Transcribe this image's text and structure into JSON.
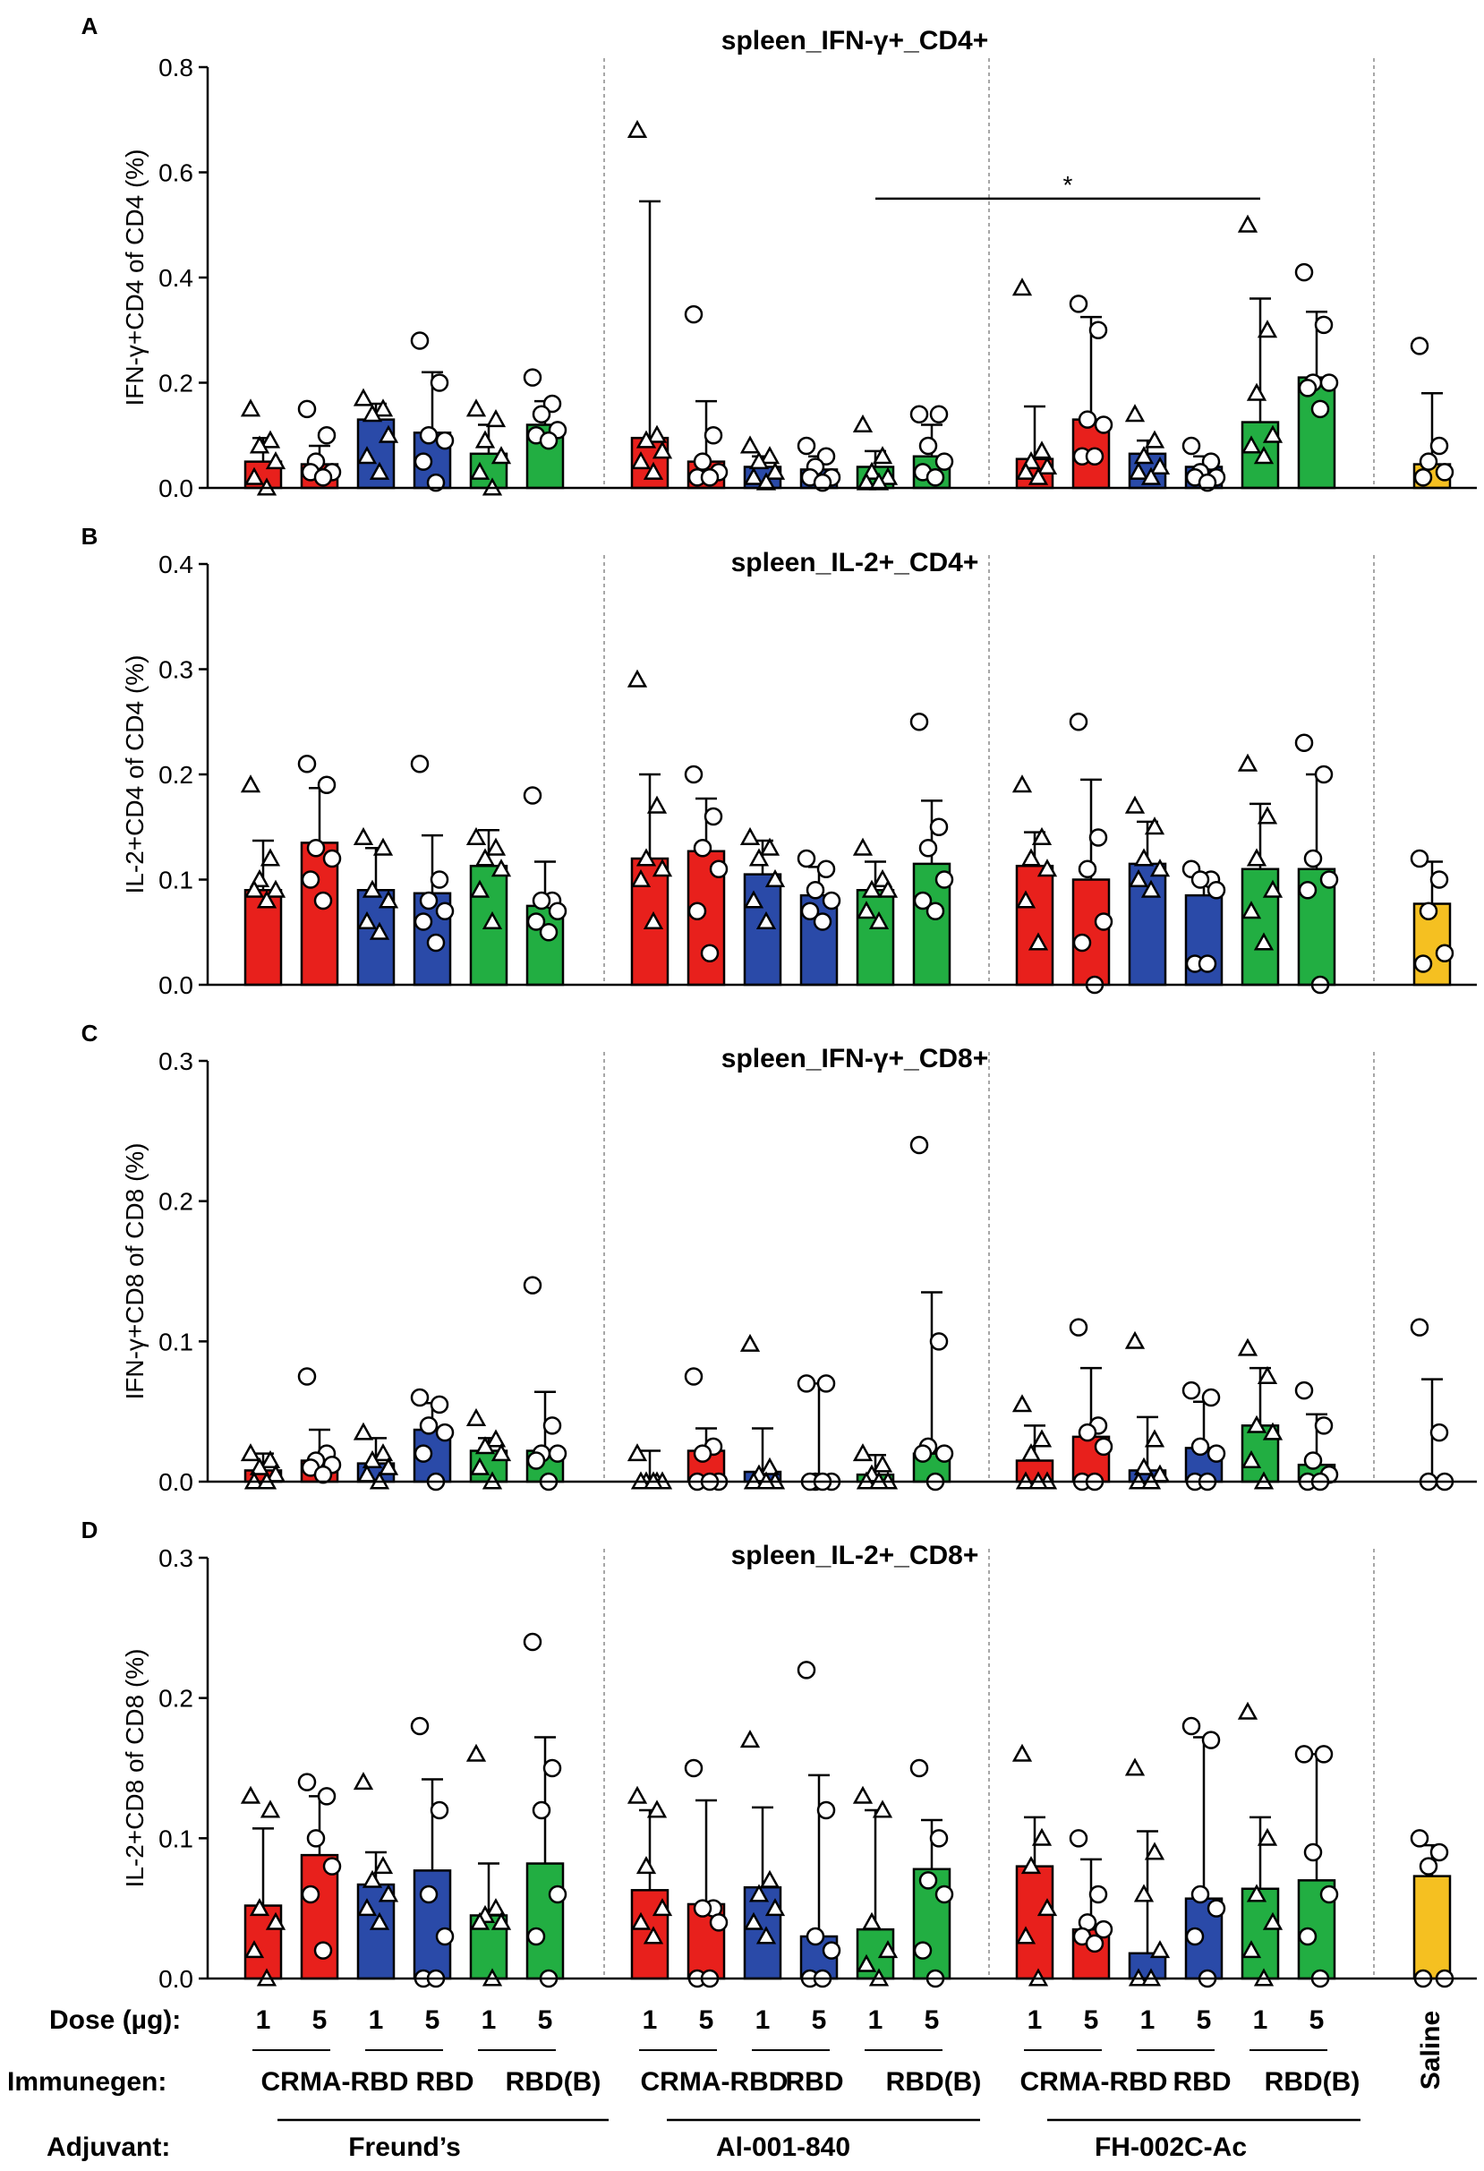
{
  "groups": [
    {
      "label": "Freund's",
      "bars": [
        {
          "immunogen": "CRMA-RBD",
          "dose": "1",
          "color": "#e8201c",
          "marker": "triangle"
        },
        {
          "immunogen": "CRMA-RBD",
          "dose": "5",
          "color": "#e8201c",
          "marker": "circle"
        },
        {
          "immunogen": "RBD",
          "dose": "1",
          "color": "#2a4aa8",
          "marker": "triangle"
        },
        {
          "immunogen": "RBD",
          "dose": "5",
          "color": "#2a4aa8",
          "marker": "circle"
        },
        {
          "immunogen": "RBD(B)",
          "dose": "1",
          "color": "#22ae42",
          "marker": "triangle"
        },
        {
          "immunogen": "RBD(B)",
          "dose": "5",
          "color": "#22ae42",
          "marker": "circle"
        }
      ]
    },
    {
      "label": "Al-001-840",
      "bars": [
        {
          "immunogen": "CRMA-RBD",
          "dose": "1",
          "color": "#e8201c",
          "marker": "triangle"
        },
        {
          "immunogen": "CRMA-RBD",
          "dose": "5",
          "color": "#e8201c",
          "marker": "circle"
        },
        {
          "immunogen": "RBD",
          "dose": "1",
          "color": "#2a4aa8",
          "marker": "triangle"
        },
        {
          "immunogen": "RBD",
          "dose": "5",
          "color": "#2a4aa8",
          "marker": "circle"
        },
        {
          "immunogen": "RBD(B)",
          "dose": "1",
          "color": "#22ae42",
          "marker": "triangle"
        },
        {
          "immunogen": "RBD(B)",
          "dose": "5",
          "color": "#22ae42",
          "marker": "circle"
        }
      ]
    },
    {
      "label": "FH-002C-Ac",
      "bars": [
        {
          "immunogen": "CRMA-RBD",
          "dose": "1",
          "color": "#e8201c",
          "marker": "triangle"
        },
        {
          "immunogen": "CRMA-RBD",
          "dose": "5",
          "color": "#e8201c",
          "marker": "circle"
        },
        {
          "immunogen": "RBD",
          "dose": "1",
          "color": "#2a4aa8",
          "marker": "triangle"
        },
        {
          "immunogen": "RBD",
          "dose": "5",
          "color": "#2a4aa8",
          "marker": "circle"
        },
        {
          "immunogen": "RBD(B)",
          "dose": "1",
          "color": "#22ae42",
          "marker": "triangle"
        },
        {
          "immunogen": "RBD(B)",
          "dose": "5",
          "color": "#22ae42",
          "marker": "circle"
        }
      ]
    },
    {
      "label": "Saline",
      "bars": [
        {
          "immunogen": "",
          "dose": "",
          "color": "#f5c021",
          "marker": "circle"
        }
      ]
    }
  ],
  "footer": {
    "dose_label": "Dose (µg):",
    "immunogen_label": "Immunegen:",
    "adjuvant_label": "Adjuvant:",
    "immunogen_names": [
      "CRMA-RBD",
      "RBD",
      "RBD(B)"
    ],
    "adjuvant_names": [
      "Freund’s",
      "Al-001-840",
      "FH-002C-Ac"
    ],
    "saline_label": "Saline"
  },
  "chart_data": [
    {
      "panel": "A",
      "type": "bar",
      "title": "spleen_IFN-γ+_CD4+",
      "ylabel": "IFN-γ+CD4 of CD4 (%)",
      "ylim": [
        0,
        0.8
      ],
      "yticks": [
        "0.0",
        "0.2",
        "0.4",
        "0.6",
        "0.8"
      ],
      "means": [
        0.05,
        0.045,
        0.13,
        0.105,
        0.065,
        0.12,
        0.095,
        0.05,
        0.04,
        0.035,
        0.04,
        0.06,
        0.055,
        0.13,
        0.065,
        0.04,
        0.125,
        0.21,
        0.045
      ],
      "err_hi": [
        0.095,
        0.08,
        0.16,
        0.22,
        0.12,
        0.165,
        0.545,
        0.165,
        0.06,
        0.06,
        0.07,
        0.12,
        0.155,
        0.325,
        0.09,
        0.06,
        0.36,
        0.335,
        0.18
      ],
      "points": [
        [
          0.15,
          0.09,
          0.08,
          0.05,
          0.02,
          0.0
        ],
        [
          0.15,
          0.1,
          0.05,
          0.03,
          0.03,
          0.02
        ],
        [
          0.17,
          0.15,
          0.14,
          0.1,
          0.06,
          0.03
        ],
        [
          0.28,
          0.2,
          0.1,
          0.09,
          0.05,
          0.01
        ],
        [
          0.15,
          0.13,
          0.09,
          0.06,
          0.03,
          0.0
        ],
        [
          0.21,
          0.16,
          0.14,
          0.11,
          0.1,
          0.09
        ],
        [
          0.68,
          0.1,
          0.09,
          0.07,
          0.05,
          0.03
        ],
        [
          0.33,
          0.1,
          0.05,
          0.03,
          0.02,
          0.02
        ],
        [
          0.08,
          0.06,
          0.05,
          0.03,
          0.02,
          0.01
        ],
        [
          0.08,
          0.06,
          0.04,
          0.02,
          0.02,
          0.01
        ],
        [
          0.12,
          0.06,
          0.03,
          0.02,
          0.01,
          0.01
        ],
        [
          0.14,
          0.14,
          0.08,
          0.05,
          0.03,
          0.02
        ],
        [
          0.38,
          0.07,
          0.05,
          0.04,
          0.03,
          0.02
        ],
        [
          0.35,
          0.3,
          0.13,
          0.12,
          0.06,
          0.06
        ],
        [
          0.14,
          0.09,
          0.06,
          0.04,
          0.03,
          0.02
        ],
        [
          0.08,
          0.05,
          0.03,
          0.02,
          0.02,
          0.01
        ],
        [
          0.5,
          0.3,
          0.18,
          0.1,
          0.08,
          0.06
        ],
        [
          0.41,
          0.31,
          0.2,
          0.2,
          0.19,
          0.15
        ],
        [
          0.27,
          0.08,
          0.05,
          0.03,
          0.02
        ]
      ],
      "annotations": [
        {
          "text": "*",
          "from_bar": 10,
          "to_bar": 16,
          "y": 0.55
        }
      ]
    },
    {
      "panel": "B",
      "type": "bar",
      "title": "spleen_IL-2+_CD4+",
      "ylabel": "IL-2+CD4 of CD4 (%)",
      "ylim": [
        0,
        0.4
      ],
      "yticks": [
        "0.0",
        "0.1",
        "0.2",
        "0.3",
        "0.4"
      ],
      "means": [
        0.09,
        0.135,
        0.09,
        0.087,
        0.113,
        0.075,
        0.12,
        0.127,
        0.105,
        0.085,
        0.09,
        0.115,
        0.113,
        0.1,
        0.115,
        0.085,
        0.11,
        0.11,
        0.077
      ],
      "err_hi": [
        0.137,
        0.187,
        0.13,
        0.142,
        0.147,
        0.117,
        0.2,
        0.177,
        0.137,
        0.112,
        0.117,
        0.175,
        0.145,
        0.195,
        0.155,
        0.105,
        0.172,
        0.2,
        0.117
      ],
      "points": [
        [
          0.19,
          0.12,
          0.1,
          0.09,
          0.09,
          0.08
        ],
        [
          0.21,
          0.19,
          0.13,
          0.12,
          0.1,
          0.08
        ],
        [
          0.14,
          0.13,
          0.09,
          0.08,
          0.06,
          0.05
        ],
        [
          0.21,
          0.1,
          0.08,
          0.07,
          0.06,
          0.04
        ],
        [
          0.14,
          0.13,
          0.12,
          0.11,
          0.09,
          0.06
        ],
        [
          0.18,
          0.08,
          0.08,
          0.07,
          0.06,
          0.05
        ],
        [
          0.29,
          0.17,
          0.12,
          0.11,
          0.1,
          0.06
        ],
        [
          0.2,
          0.16,
          0.13,
          0.11,
          0.07,
          0.03
        ],
        [
          0.14,
          0.13,
          0.12,
          0.1,
          0.08,
          0.06
        ],
        [
          0.12,
          0.11,
          0.09,
          0.08,
          0.07,
          0.06
        ],
        [
          0.13,
          0.1,
          0.09,
          0.09,
          0.07,
          0.06
        ],
        [
          0.25,
          0.15,
          0.13,
          0.1,
          0.08,
          0.07
        ],
        [
          0.19,
          0.14,
          0.12,
          0.11,
          0.08,
          0.04
        ],
        [
          0.25,
          0.14,
          0.11,
          0.06,
          0.04,
          0.0
        ],
        [
          0.17,
          0.15,
          0.12,
          0.11,
          0.1,
          0.09
        ],
        [
          0.11,
          0.1,
          0.1,
          0.09,
          0.02,
          0.02
        ],
        [
          0.21,
          0.16,
          0.12,
          0.09,
          0.07,
          0.04
        ],
        [
          0.23,
          0.2,
          0.12,
          0.1,
          0.09,
          0.0
        ],
        [
          0.12,
          0.1,
          0.07,
          0.03,
          0.02
        ]
      ],
      "annotations": []
    },
    {
      "panel": "C",
      "type": "bar",
      "title": "spleen_IFN-γ+_CD8+",
      "ylabel": "IFN-γ+CD8 of CD8 (%)",
      "ylim": [
        0,
        0.3
      ],
      "yticks": [
        "0.0",
        "0.1",
        "0.2",
        "0.3"
      ],
      "means": [
        0.008,
        0.015,
        0.013,
        0.037,
        0.022,
        0.022,
        0.0,
        0.022,
        0.007,
        0.0,
        0.005,
        0.02,
        0.015,
        0.032,
        0.008,
        0.024,
        0.04,
        0.012,
        0.0
      ],
      "err_hi": [
        0.02,
        0.037,
        0.031,
        0.056,
        0.031,
        0.064,
        0.022,
        0.038,
        0.038,
        0.07,
        0.019,
        0.135,
        0.04,
        0.081,
        0.046,
        0.057,
        0.081,
        0.048,
        0.073
      ],
      "points": [
        [
          0.02,
          0.015,
          0.01,
          0.005,
          0.0,
          0.0
        ],
        [
          0.075,
          0.02,
          0.015,
          0.012,
          0.01,
          0.005
        ],
        [
          0.035,
          0.02,
          0.015,
          0.01,
          0.005,
          0.0
        ],
        [
          0.06,
          0.055,
          0.04,
          0.035,
          0.02,
          0.0
        ],
        [
          0.045,
          0.03,
          0.025,
          0.02,
          0.01,
          0.0
        ],
        [
          0.14,
          0.04,
          0.02,
          0.02,
          0.015,
          0.0
        ],
        [
          0.02,
          0.0,
          0.0,
          0.0,
          0.0,
          0.0
        ],
        [
          0.075,
          0.025,
          0.02,
          0.0,
          0.0,
          0.0
        ],
        [
          0.098,
          0.01,
          0.005,
          0.0,
          0.0,
          0.0
        ],
        [
          0.07,
          0.07,
          0.0,
          0.0,
          0.0,
          0.0
        ],
        [
          0.02,
          0.012,
          0.005,
          0.0,
          0.0,
          0.0
        ],
        [
          0.24,
          0.1,
          0.025,
          0.02,
          0.02,
          0.0
        ],
        [
          0.055,
          0.03,
          0.02,
          0.0,
          0.0,
          0.0
        ],
        [
          0.11,
          0.04,
          0.035,
          0.025,
          0.0,
          0.0
        ],
        [
          0.1,
          0.03,
          0.01,
          0.005,
          0.0,
          0.0
        ],
        [
          0.065,
          0.06,
          0.025,
          0.02,
          0.0,
          0.0
        ],
        [
          0.095,
          0.075,
          0.04,
          0.035,
          0.015,
          0.0
        ],
        [
          0.065,
          0.04,
          0.015,
          0.005,
          0.0,
          0.0
        ],
        [
          0.11,
          0.035,
          0.0,
          0.0
        ]
      ],
      "annotations": []
    },
    {
      "panel": "D",
      "type": "bar",
      "title": "spleen_IL-2+_CD8+",
      "ylabel": "IL-2+CD8 of CD8 (%)",
      "ylim": [
        0,
        0.3
      ],
      "yticks": [
        "0.0",
        "0.1",
        "0.2",
        "0.3"
      ],
      "means": [
        0.052,
        0.088,
        0.067,
        0.077,
        0.045,
        0.082,
        0.063,
        0.053,
        0.065,
        0.03,
        0.035,
        0.078,
        0.08,
        0.035,
        0.018,
        0.057,
        0.064,
        0.07,
        0.073
      ],
      "err_hi": [
        0.107,
        0.13,
        0.09,
        0.142,
        0.082,
        0.172,
        0.12,
        0.127,
        0.122,
        0.145,
        0.12,
        0.113,
        0.115,
        0.085,
        0.105,
        0.172,
        0.115,
        0.16,
        0.095
      ],
      "points": [
        [
          0.13,
          0.12,
          0.05,
          0.04,
          0.02,
          0.0
        ],
        [
          0.14,
          0.13,
          0.1,
          0.08,
          0.06,
          0.02
        ],
        [
          0.14,
          0.08,
          0.07,
          0.06,
          0.05,
          0.04
        ],
        [
          0.18,
          0.12,
          0.06,
          0.03,
          0.0,
          0.0
        ],
        [
          0.16,
          0.05,
          0.045,
          0.04,
          0.04,
          0.0
        ],
        [
          0.24,
          0.15,
          0.12,
          0.06,
          0.03,
          0.0
        ],
        [
          0.13,
          0.12,
          0.08,
          0.05,
          0.04,
          0.03
        ],
        [
          0.15,
          0.05,
          0.05,
          0.04,
          0.0,
          0.0
        ],
        [
          0.17,
          0.07,
          0.06,
          0.05,
          0.04,
          0.03
        ],
        [
          0.22,
          0.12,
          0.03,
          0.02,
          0.0,
          0.0
        ],
        [
          0.13,
          0.12,
          0.04,
          0.02,
          0.01,
          0.0
        ],
        [
          0.15,
          0.1,
          0.07,
          0.06,
          0.02,
          0.0
        ],
        [
          0.16,
          0.1,
          0.08,
          0.05,
          0.03,
          0.0
        ],
        [
          0.1,
          0.06,
          0.04,
          0.035,
          0.03,
          0.025
        ],
        [
          0.15,
          0.09,
          0.06,
          0.02,
          0.0,
          0.0
        ],
        [
          0.18,
          0.17,
          0.06,
          0.05,
          0.03,
          0.0
        ],
        [
          0.19,
          0.1,
          0.06,
          0.04,
          0.02,
          0.0
        ],
        [
          0.16,
          0.16,
          0.09,
          0.06,
          0.03,
          0.0
        ],
        [
          0.1,
          0.09,
          0.08,
          0.0,
          0.0
        ]
      ],
      "annotations": []
    }
  ]
}
